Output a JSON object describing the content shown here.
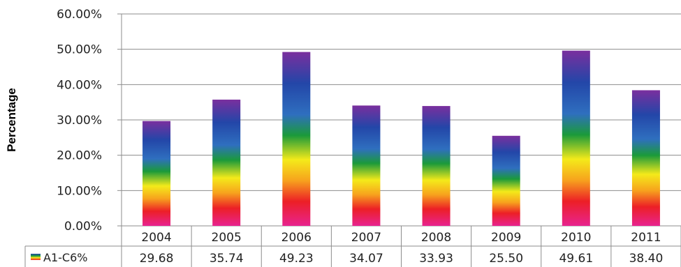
{
  "chart_data": {
    "type": "bar",
    "title": "",
    "ylabel": "Percentage",
    "xlabel": "",
    "ylim": [
      0,
      60
    ],
    "y_ticks": [
      "0.00%",
      "10.00%",
      "20.00%",
      "30.00%",
      "40.00%",
      "50.00%",
      "60.00%"
    ],
    "categories": [
      "2004",
      "2005",
      "2006",
      "2007",
      "2008",
      "2009",
      "2010",
      "2011"
    ],
    "series": [
      {
        "name": "A1-C6%",
        "values": [
          29.68,
          35.74,
          49.23,
          34.07,
          33.93,
          25.5,
          49.61,
          38.4
        ],
        "value_labels": [
          "29.68",
          "35.74",
          "49.23",
          "34.07",
          "33.93",
          "25.50",
          "49.61",
          "38.40"
        ]
      }
    ],
    "gridlines": true,
    "legend": "data-table",
    "bar_fill": "rainbow-gradient",
    "colors": {
      "gridline": "#8c8c8c",
      "axis": "#8c8c8c",
      "gradient": [
        "#7a2f9e",
        "#2346a8",
        "#2f6fbf",
        "#1b9a3a",
        "#f4ea1a",
        "#f7a21d",
        "#ec1f26",
        "#e8238f"
      ]
    }
  }
}
